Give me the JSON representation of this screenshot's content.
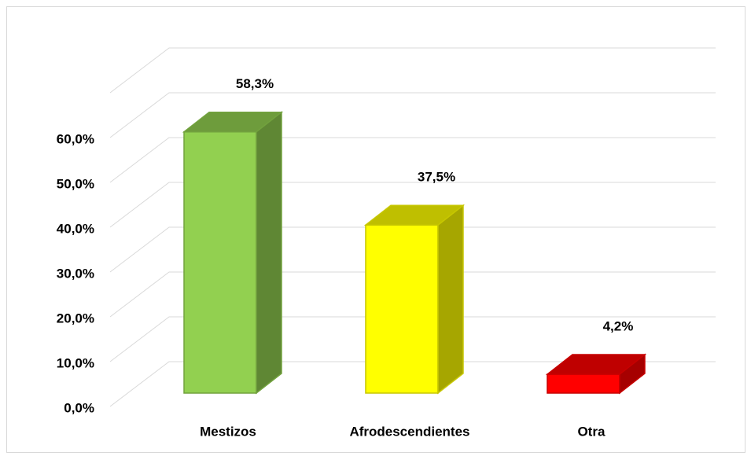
{
  "chart_data": {
    "type": "bar3d",
    "categories": [
      "Mestizos",
      "Afrodescendientes",
      "Otra"
    ],
    "values": [
      58.3,
      37.5,
      4.2
    ],
    "value_labels": [
      "58,3%",
      "37,5%",
      "4,2%"
    ],
    "colors": [
      "#92d050",
      "#ffff00",
      "#ff0000"
    ],
    "ylim": [
      0,
      70
    ],
    "yticks": [
      {
        "value": 0,
        "label": "0,0%"
      },
      {
        "value": 10,
        "label": "10,0%"
      },
      {
        "value": 20,
        "label": "20,0%"
      },
      {
        "value": 30,
        "label": "30,0%"
      },
      {
        "value": 40,
        "label": "40,0%"
      },
      {
        "value": 50,
        "label": "50,0%"
      },
      {
        "value": 60,
        "label": "60,0%"
      }
    ],
    "grid": true
  }
}
